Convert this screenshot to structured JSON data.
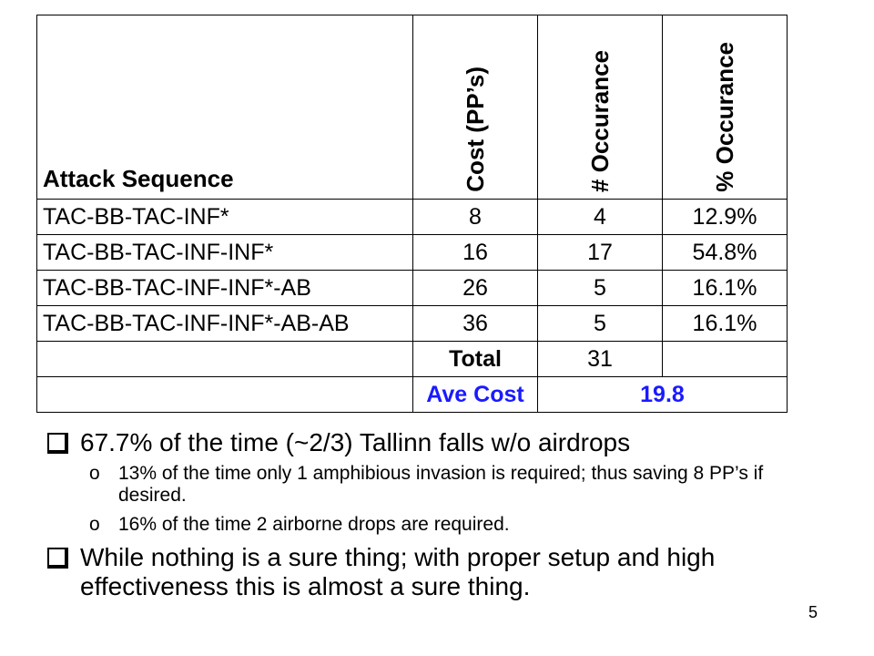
{
  "table": {
    "headers": {
      "sequence": "Attack Sequence",
      "cost": "Cost (PP’s)",
      "count": "# Occurance",
      "percent": "% Occurance"
    },
    "rows": [
      {
        "sequence": "TAC-BB-TAC-INF*",
        "cost": "8",
        "count": "4",
        "percent": "12.9%"
      },
      {
        "sequence": "TAC-BB-TAC-INF-INF*",
        "cost": "16",
        "count": "17",
        "percent": "54.8%"
      },
      {
        "sequence": "TAC-BB-TAC-INF-INF*-AB",
        "cost": "26",
        "count": "5",
        "percent": "16.1%"
      },
      {
        "sequence": "TAC-BB-TAC-INF-INF*-AB-AB",
        "cost": "36",
        "count": "5",
        "percent": "16.1%"
      }
    ],
    "total_label": "Total",
    "total_value": "31",
    "ave_label": "Ave Cost",
    "ave_value": "19.8"
  },
  "bullets": [
    {
      "text": "67.7% of the time (~2/3) Tallinn falls w/o airdrops",
      "subs": [
        "13% of the time only 1 amphibious invasion is required; thus saving 8 PP’s if desired.",
        "16% of the time 2 airborne drops are required."
      ]
    },
    {
      "text": "While nothing is a sure thing; with proper setup and high effectiveness this is almost a sure thing.",
      "subs": []
    }
  ],
  "sub_marker": "o",
  "page_number": "5"
}
